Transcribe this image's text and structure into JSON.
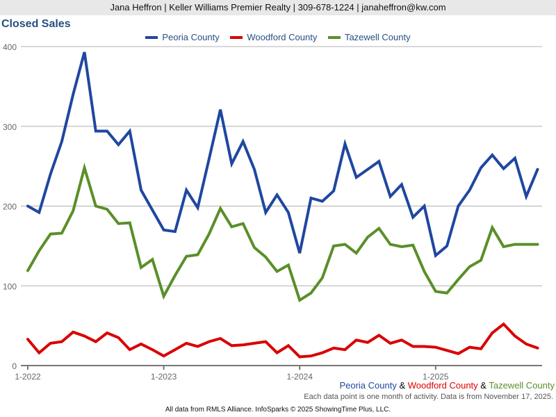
{
  "header": {
    "text": "Jana Heffron | Keller Williams Premier Realty | 309-678-1224 | janaheffron@kw.com"
  },
  "chart_data": {
    "type": "line",
    "title": "Closed Sales",
    "xlabel": "",
    "ylabel": "",
    "ylim": [
      0,
      400
    ],
    "yticks": [
      0,
      100,
      200,
      300,
      400
    ],
    "grid": true,
    "legend_position": "top",
    "x_start": "1-2022",
    "x_tick_labels": [
      "1-2022",
      "1-2023",
      "1-2024",
      "1-2025"
    ],
    "x_tick_index": [
      0,
      12,
      24,
      36
    ],
    "series": [
      {
        "name": "Peoria County",
        "color": "#1f47a0",
        "values": [
          200,
          192,
          240,
          281,
          340,
          393,
          294,
          294,
          277,
          294,
          220,
          195,
          170,
          168,
          220,
          198,
          259,
          321,
          253,
          281,
          246,
          192,
          214,
          192,
          141,
          210,
          206,
          219,
          278,
          236,
          246,
          256,
          212,
          227,
          186,
          200,
          138,
          150,
          200,
          220,
          248,
          264,
          247,
          260,
          212,
          246
        ]
      },
      {
        "name": "Woodford County",
        "color": "#d90000",
        "values": [
          33,
          16,
          28,
          30,
          42,
          37,
          30,
          41,
          35,
          20,
          27,
          20,
          12,
          20,
          28,
          24,
          30,
          34,
          25,
          26,
          28,
          30,
          16,
          25,
          11,
          12,
          16,
          22,
          20,
          32,
          29,
          38,
          28,
          32,
          24,
          24,
          23,
          19,
          15,
          23,
          21,
          41,
          52,
          37,
          27,
          22
        ]
      },
      {
        "name": "Tazewell County",
        "color": "#5a8f29",
        "values": [
          119,
          144,
          165,
          166,
          194,
          248,
          200,
          196,
          178,
          179,
          123,
          133,
          87,
          113,
          137,
          139,
          165,
          197,
          174,
          178,
          148,
          136,
          118,
          126,
          82,
          91,
          110,
          150,
          152,
          141,
          161,
          172,
          152,
          149,
          151,
          118,
          93,
          91,
          108,
          124,
          132,
          173,
          149,
          152,
          152,
          152
        ]
      }
    ]
  },
  "subtitle": {
    "part1": "Peoria County",
    "sep1": " & ",
    "part2": "Woodford County",
    "sep2": " & ",
    "part3": "Tazewell County"
  },
  "note": "Each data point is one month of activity. Data is from November 17, 2025.",
  "footer": "All data from RMLS Alliance. InfoSparks © 2025 ShowingTime Plus, LLC."
}
